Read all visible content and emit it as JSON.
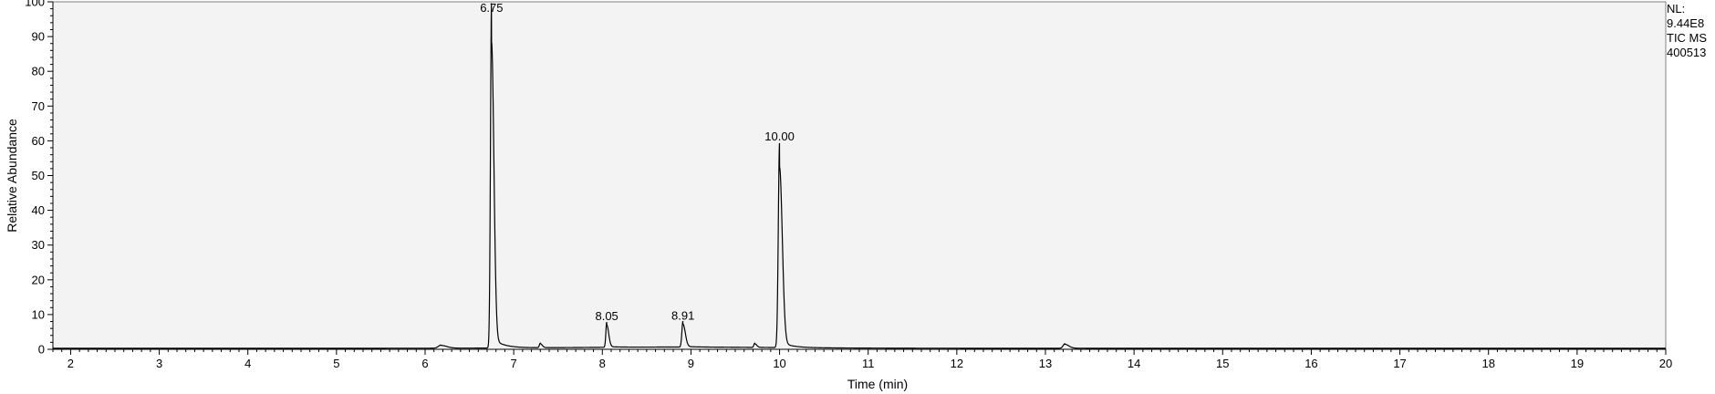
{
  "chart_data": {
    "type": "line",
    "title": "",
    "xlabel": "Time (min)",
    "ylabel": "Relative Abundance",
    "xlim": [
      1.8,
      20
    ],
    "ylim": [
      0,
      100
    ],
    "x_ticks": [
      2,
      3,
      4,
      5,
      6,
      7,
      8,
      9,
      10,
      11,
      12,
      13,
      14,
      15,
      16,
      17,
      18,
      19,
      20
    ],
    "y_ticks": [
      0,
      10,
      20,
      30,
      40,
      50,
      60,
      70,
      80,
      90,
      100
    ],
    "grid": false,
    "baseline": 0.3,
    "series": [
      {
        "peaks": [
          {
            "rt": 6.18,
            "height": 0.9,
            "width": 0.03
          },
          {
            "rt": 6.75,
            "height": 100,
            "width": 0.012
          },
          {
            "rt": 7.3,
            "height": 1.3,
            "width": 0.01
          },
          {
            "rt": 8.05,
            "height": 7.3,
            "width": 0.01
          },
          {
            "rt": 8.91,
            "height": 7.5,
            "width": 0.012
          },
          {
            "rt": 9.72,
            "height": 1.2,
            "width": 0.01
          },
          {
            "rt": 10.0,
            "height": 59,
            "width": 0.014
          },
          {
            "rt": 13.22,
            "height": 1.3,
            "width": 0.02
          }
        ]
      }
    ],
    "peak_labels": [
      {
        "x": 6.75,
        "y": 100,
        "text": "6.75"
      },
      {
        "x": 8.05,
        "y": 7.3,
        "text": "8.05"
      },
      {
        "x": 8.91,
        "y": 7.5,
        "text": "8.91"
      },
      {
        "x": 10.0,
        "y": 59,
        "text": "10.00"
      }
    ],
    "line_color": "#000000",
    "plot_background": "#f3f3f3"
  },
  "header": {
    "nl_label": "NL:",
    "nl_value": "9.44E8",
    "trace_type": "TIC  MS",
    "file_name": "400513"
  }
}
